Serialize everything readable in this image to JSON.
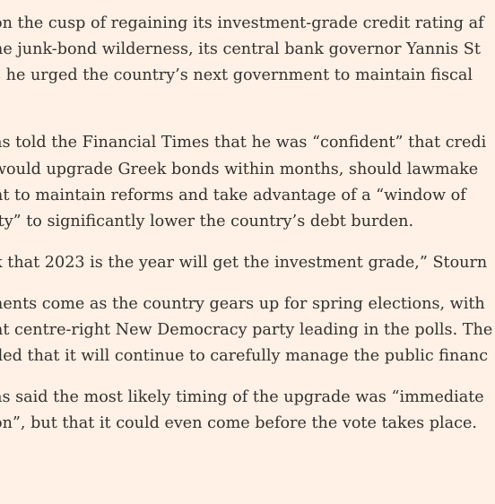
{
  "article": {
    "paragraphs": [
      {
        "lines": [
          "on the cusp of regaining its investment-grade credit rating af",
          "he junk-bond wilderness, its central bank governor Yannis St",
          "s he urged the country’s next government to maintain fiscal",
          "."
        ]
      },
      {
        "lines": [
          "as told the Financial Times that he was “confident” that credi",
          "would upgrade Greek bonds within months, should lawmake",
          "nt to maintain reforms and take advantage of a “window of",
          "ity” to significantly lower the country’s debt burden."
        ]
      },
      {
        "lines": [
          "k that 2023 is the year will get the investment grade,” Stourn"
        ]
      },
      {
        "lines": [
          "nents come as the country gears up for spring elections, with",
          "nt centre-right New Democracy party leading in the polls. The",
          "lled that it will continue to carefully manage the public financ"
        ]
      },
      {
        "lines": [
          "as said the most likely timing of the upgrade was “immediate",
          "on”, but that it could even come before the vote takes place."
        ]
      }
    ]
  }
}
